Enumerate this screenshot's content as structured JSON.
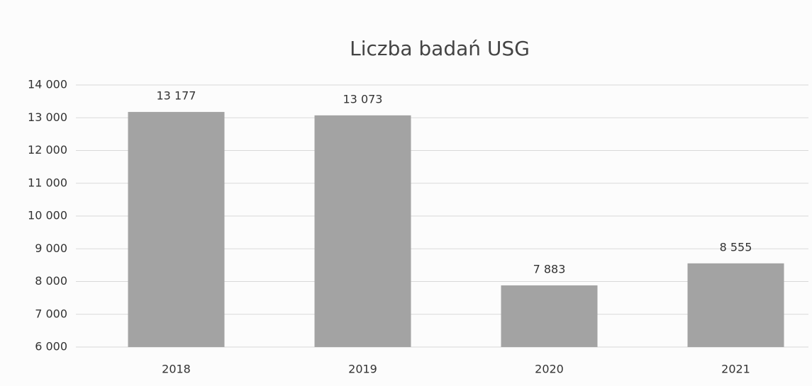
{
  "chart_data": {
    "type": "bar",
    "title": "Liczba badań USG",
    "categories": [
      "2018",
      "2019",
      "2020",
      "2021"
    ],
    "values": [
      13177,
      13073,
      7883,
      8555
    ],
    "value_labels": [
      "13 177",
      "13 073",
      "7 883",
      "8 555"
    ],
    "color": "#a3a3a3",
    "ylim": [
      6000,
      14000
    ],
    "yticks": [
      {
        "value": 6000,
        "label": "6 000"
      },
      {
        "value": 7000,
        "label": "7 000"
      },
      {
        "value": 8000,
        "label": "8 000"
      },
      {
        "value": 9000,
        "label": "9 000"
      },
      {
        "value": 10000,
        "label": "10 000"
      },
      {
        "value": 11000,
        "label": "11 000"
      },
      {
        "value": 12000,
        "label": "12 000"
      },
      {
        "value": 13000,
        "label": "13 000"
      },
      {
        "value": 14000,
        "label": "14 000"
      }
    ],
    "grid": true
  }
}
